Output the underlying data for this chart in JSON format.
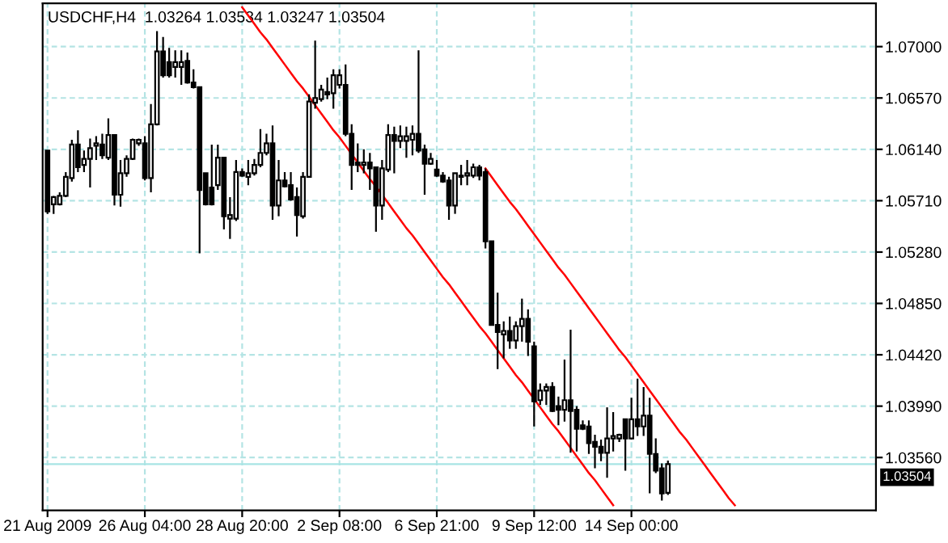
{
  "chart_data": {
    "type": "candlestick",
    "title": "USDCHF,H4  1.03264 1.03534 1.03247 1.03504",
    "categories": [
      "21 Aug 2009",
      null,
      null,
      null,
      null,
      null,
      null,
      null,
      null,
      null,
      null,
      null,
      null,
      null,
      null,
      null,
      "26 Aug 04:00",
      null,
      null,
      null,
      null,
      null,
      null,
      null,
      null,
      null,
      null,
      null,
      null,
      null,
      null,
      null,
      "28 Aug 20:00",
      null,
      null,
      null,
      null,
      null,
      null,
      null,
      null,
      null,
      null,
      null,
      null,
      null,
      null,
      null,
      "2 Sep 08:00",
      null,
      null,
      null,
      null,
      null,
      null,
      null,
      null,
      null,
      null,
      null,
      null,
      null,
      null,
      null,
      "6 Sep 21:00",
      null,
      null,
      null,
      null,
      null,
      null,
      null,
      null,
      null,
      null,
      null,
      null,
      null,
      null,
      null,
      "9 Sep 12:00",
      null,
      null,
      null,
      null,
      null,
      null,
      null,
      null,
      null,
      null,
      null,
      null,
      null,
      null,
      null,
      "14 Sep 00:00",
      null,
      null,
      null,
      null,
      null,
      null,
      null,
      null,
      null,
      null,
      null,
      null,
      null,
      null,
      null,
      null,
      null,
      null,
      null,
      null,
      null,
      null,
      null,
      null,
      null,
      null,
      null,
      null,
      null,
      null,
      null,
      null,
      null,
      null,
      null,
      null,
      null,
      null,
      null,
      null
    ],
    "color": "#000000",
    "ohlc": [
      [
        1.0613,
        1.0613,
        1.056,
        1.0562
      ],
      [
        1.0568,
        1.0575,
        1.056,
        1.0574
      ],
      [
        1.0568,
        1.0578,
        1.0567,
        1.0575
      ],
      [
        1.0575,
        1.0595,
        1.0574,
        1.0591
      ],
      [
        1.059,
        1.0622,
        1.0587,
        1.0618
      ],
      [
        1.0618,
        1.063,
        1.0595,
        1.0599
      ],
      [
        1.0601,
        1.0613,
        1.0595,
        1.0606
      ],
      [
        1.0606,
        1.0623,
        1.0582,
        1.0615
      ],
      [
        1.0617,
        1.0625,
        1.0605,
        1.0619
      ],
      [
        1.0618,
        1.0627,
        1.0606,
        1.0609
      ],
      [
        1.0607,
        1.064,
        1.0605,
        1.0626
      ],
      [
        1.0626,
        1.0626,
        1.0567,
        1.0576
      ],
      [
        1.0576,
        1.0605,
        1.0566,
        1.0594
      ],
      [
        1.0594,
        1.0609,
        1.0591,
        1.0606
      ],
      [
        1.0606,
        1.0623,
        1.0605,
        1.0622
      ],
      [
        1.0619,
        1.0623,
        1.0617,
        1.0622
      ],
      [
        1.0619,
        1.0625,
        1.0588,
        1.059
      ],
      [
        1.059,
        1.0652,
        1.0578,
        1.0635
      ],
      [
        1.0635,
        1.0713,
        1.0634,
        1.0696
      ],
      [
        1.0696,
        1.0708,
        1.0674,
        1.0676
      ],
      [
        1.0687,
        1.0699,
        1.0674,
        1.0676
      ],
      [
        1.0683,
        1.0697,
        1.0674,
        1.0687
      ],
      [
        1.0683,
        1.0697,
        1.0668,
        1.0687
      ],
      [
        1.0688,
        1.0695,
        1.0669,
        1.067
      ],
      [
        1.067,
        1.0681,
        1.0665,
        1.0666
      ],
      [
        1.0666,
        1.0666,
        1.0527,
        1.058
      ],
      [
        1.0594,
        1.0594,
        1.0567,
        1.0568
      ],
      [
        1.0582,
        1.0618,
        1.0567,
        1.0568
      ],
      [
        1.0584,
        1.0618,
        1.058,
        1.0607
      ],
      [
        1.0607,
        1.0607,
        1.0547,
        1.0558
      ],
      [
        1.0556,
        1.0574,
        1.0539,
        1.0559
      ],
      [
        1.0556,
        1.0605,
        1.0554,
        1.0595
      ],
      [
        1.0595,
        1.0598,
        1.0591,
        1.0592
      ],
      [
        1.0591,
        1.0605,
        1.0584,
        1.0594
      ],
      [
        1.0594,
        1.0606,
        1.0592,
        1.0601
      ],
      [
        1.0601,
        1.0631,
        1.0599,
        1.0611
      ],
      [
        1.0611,
        1.0627,
        1.0609,
        1.0619
      ],
      [
        1.0619,
        1.0634,
        1.0555,
        1.0567
      ],
      [
        1.0567,
        1.0605,
        1.0558,
        1.0588
      ],
      [
        1.0588,
        1.0595,
        1.0582,
        1.0583
      ],
      [
        1.0584,
        1.0595,
        1.0571,
        1.0572
      ],
      [
        1.0574,
        1.0582,
        1.0541,
        1.0559
      ],
      [
        1.0558,
        1.0595,
        1.0556,
        1.0591
      ],
      [
        1.0591,
        1.066,
        1.0591,
        1.0654
      ],
      [
        1.0653,
        1.0705,
        1.0648,
        1.0657
      ],
      [
        1.0656,
        1.0668,
        1.0654,
        1.0664
      ],
      [
        1.0662,
        1.0674,
        1.0656,
        1.066
      ],
      [
        1.0661,
        1.0681,
        1.0648,
        1.0676
      ],
      [
        1.0668,
        1.0681,
        1.0665,
        1.0676
      ],
      [
        1.0668,
        1.0685,
        1.0625,
        1.0627
      ],
      [
        1.0627,
        1.0635,
        1.058,
        1.0601
      ],
      [
        1.0603,
        1.0619,
        1.0595,
        1.0601
      ],
      [
        1.0601,
        1.0614,
        1.0594,
        1.0603
      ],
      [
        1.0603,
        1.0611,
        1.058,
        1.0598
      ],
      [
        1.0599,
        1.0599,
        1.0545,
        1.0567
      ],
      [
        1.0567,
        1.0605,
        1.0555,
        1.0598
      ],
      [
        1.0597,
        1.0635,
        1.0595,
        1.0626
      ],
      [
        1.0626,
        1.0633,
        1.0594,
        1.0621
      ],
      [
        1.0621,
        1.0634,
        1.0615,
        1.0625
      ],
      [
        1.0621,
        1.0633,
        1.0607,
        1.0625
      ],
      [
        1.0622,
        1.0634,
        1.0609,
        1.0627
      ],
      [
        1.0627,
        1.0697,
        1.0611,
        1.0613
      ],
      [
        1.0614,
        1.0618,
        1.0576,
        1.0602
      ],
      [
        1.0602,
        1.0611,
        1.0601,
        1.0606
      ],
      [
        1.0597,
        1.0605,
        1.0591,
        1.0592
      ],
      [
        1.0592,
        1.0595,
        1.0586,
        1.0587
      ],
      [
        1.0588,
        1.0591,
        1.0555,
        1.0567
      ],
      [
        1.0567,
        1.0594,
        1.056,
        1.0594
      ],
      [
        1.0591,
        1.0601,
        1.0584,
        1.0592
      ],
      [
        1.0592,
        1.0605,
        1.0584,
        1.0594
      ],
      [
        1.0592,
        1.0602,
        1.059,
        1.0599
      ],
      [
        1.0599,
        1.0601,
        1.0588,
        1.0592
      ],
      [
        1.0595,
        1.0598,
        1.0531,
        1.0537
      ],
      [
        1.0537,
        1.0537,
        1.0467,
        1.0467
      ],
      [
        1.0467,
        1.0494,
        1.043,
        1.0461
      ],
      [
        1.0459,
        1.047,
        1.0439,
        1.0462
      ],
      [
        1.0462,
        1.0474,
        1.0447,
        1.0454
      ],
      [
        1.0454,
        1.047,
        1.0447,
        1.0466
      ],
      [
        1.0466,
        1.0489,
        1.0453,
        1.0472
      ],
      [
        1.0472,
        1.048,
        1.0441,
        1.0453
      ],
      [
        1.0449,
        1.0453,
        1.0382,
        1.0403
      ],
      [
        1.0404,
        1.0418,
        1.04,
        1.0412
      ],
      [
        1.0412,
        1.0418,
        1.04,
        1.0415
      ],
      [
        1.0415,
        1.0419,
        1.0394,
        1.0395
      ],
      [
        1.0399,
        1.0407,
        1.0383,
        1.0396
      ],
      [
        1.0396,
        1.0438,
        1.0386,
        1.0404
      ],
      [
        1.0404,
        1.0463,
        1.036,
        1.0395
      ],
      [
        1.0396,
        1.0399,
        1.0361,
        1.038
      ],
      [
        1.0383,
        1.0387,
        1.0379,
        1.038
      ],
      [
        1.0382,
        1.0387,
        1.0359,
        1.0368
      ],
      [
        1.0369,
        1.0375,
        1.0347,
        1.0365
      ],
      [
        1.0365,
        1.0371,
        1.0353,
        1.036
      ],
      [
        1.036,
        1.0398,
        1.0339,
        1.0372
      ],
      [
        1.0372,
        1.0394,
        1.0361,
        1.0374
      ],
      [
        1.0372,
        1.0376,
        1.0369,
        1.0375
      ],
      [
        1.0388,
        1.0388,
        1.0345,
        1.0372
      ],
      [
        1.0372,
        1.0406,
        1.0371,
        1.0388
      ],
      [
        1.0388,
        1.0422,
        1.0374,
        1.0382
      ],
      [
        1.0382,
        1.0415,
        1.0374,
        1.0391
      ],
      [
        1.0391,
        1.0406,
        1.0326,
        1.0359
      ],
      [
        1.0359,
        1.0372,
        1.0343,
        1.0345
      ],
      [
        1.0347,
        1.0351,
        1.032,
        1.0326
      ],
      [
        1.03264,
        1.03534,
        1.03247,
        1.03504
      ],
      null,
      null,
      null,
      null,
      null,
      null,
      null,
      null,
      null,
      null,
      null,
      null,
      null,
      null,
      null,
      null,
      null,
      null,
      null,
      null,
      null,
      null,
      null,
      null,
      null,
      null,
      null,
      null,
      null,
      null,
      null,
      null,
      null,
      null
    ],
    "series": [
      {
        "type": "line",
        "color": "#ff0000",
        "values": [
          null,
          null,
          null,
          null,
          null,
          null,
          null,
          null,
          null,
          null,
          null,
          null,
          null,
          null,
          null,
          null,
          null,
          null,
          null,
          null,
          null,
          null,
          null,
          null,
          null,
          null,
          null,
          null,
          null,
          null,
          null,
          null,
          1.0733,
          1.0726,
          1.0719,
          1.0712,
          1.0706,
          1.0699,
          1.0692,
          1.0685,
          1.0678,
          1.0671,
          1.0665,
          1.0658,
          1.0651,
          1.0644,
          1.0637,
          1.063,
          1.0624,
          1.0617,
          1.061,
          1.0603,
          1.0596,
          1.0589,
          1.0583,
          1.0576,
          1.0569,
          1.0562,
          1.0555,
          1.0548,
          1.0542,
          1.0535,
          1.0528,
          1.0521,
          1.0514,
          1.0507,
          1.0501,
          1.0494,
          1.0487,
          1.048,
          1.0473,
          1.0466,
          1.046,
          1.0453,
          1.0446,
          1.0439,
          1.0432,
          1.0425,
          1.0419,
          1.0412,
          1.0405,
          1.0398,
          1.0391,
          1.0384,
          1.0378,
          1.0371,
          1.0364,
          1.0357,
          1.035,
          1.0343,
          1.0337,
          1.033,
          1.0323,
          1.0316,
          null,
          null,
          null,
          null,
          null,
          null,
          null,
          null,
          null,
          null,
          null,
          null,
          null,
          null,
          null,
          null,
          null,
          null,
          null,
          null,
          null,
          null,
          null,
          null,
          null,
          null,
          null,
          null,
          null,
          null,
          null,
          null,
          null,
          null,
          null,
          null,
          null,
          null,
          null,
          null,
          null,
          null,
          null
        ]
      },
      {
        "type": "line",
        "color": "#ff0000",
        "values": [
          null,
          null,
          null,
          null,
          null,
          null,
          null,
          null,
          null,
          null,
          null,
          null,
          null,
          null,
          null,
          null,
          null,
          null,
          null,
          null,
          null,
          null,
          null,
          null,
          null,
          null,
          null,
          null,
          null,
          null,
          null,
          null,
          null,
          null,
          null,
          null,
          null,
          null,
          null,
          null,
          null,
          null,
          null,
          null,
          null,
          null,
          null,
          null,
          null,
          null,
          null,
          null,
          null,
          null,
          null,
          null,
          null,
          null,
          null,
          null,
          null,
          null,
          null,
          null,
          null,
          null,
          null,
          null,
          null,
          null,
          null,
          null,
          1.0598,
          1.0591,
          1.0584,
          1.0577,
          1.057,
          1.0564,
          1.0557,
          1.055,
          1.0543,
          1.0536,
          1.0529,
          1.0522,
          1.0515,
          1.0509,
          1.0502,
          1.0495,
          1.0488,
          1.0481,
          1.0474,
          1.0467,
          1.046,
          1.0453,
          1.0446,
          1.044,
          1.0433,
          1.0426,
          1.0419,
          1.0412,
          1.0405,
          1.0398,
          1.0391,
          1.0384,
          1.0377,
          1.0371,
          1.0364,
          1.0357,
          1.035,
          1.0343,
          1.0336,
          1.0329,
          1.0322,
          1.0316,
          null,
          null,
          null,
          null,
          null,
          null,
          null,
          null,
          null,
          null,
          null,
          null,
          null,
          null,
          null,
          null,
          null,
          null,
          null,
          null,
          null,
          null,
          null
        ]
      }
    ],
    "ref_lines": [
      {
        "axis": "y",
        "value": 1.03504,
        "label": "1.03504",
        "color": "#a8e4e4"
      }
    ],
    "ylim": [
      1.03117,
      1.07363
    ],
    "yticks": [
      {
        "value": 1.0356,
        "label": "1.03560"
      },
      {
        "value": 1.0399,
        "label": "1.03990"
      },
      {
        "value": 1.0442,
        "label": "1.04420"
      },
      {
        "value": 1.0485,
        "label": "1.04850"
      },
      {
        "value": 1.0528,
        "label": "1.05280"
      },
      {
        "value": 1.0571,
        "label": "1.05710"
      },
      {
        "value": 1.0614,
        "label": "1.06140"
      },
      {
        "value": 1.0657,
        "label": "1.06570"
      },
      {
        "value": 1.07,
        "label": "1.07000"
      }
    ],
    "grid": true
  }
}
